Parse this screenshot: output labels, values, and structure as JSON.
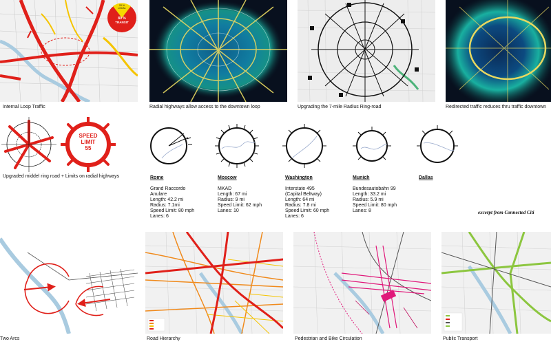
{
  "captions": {
    "internal_loop": "Internal Loop Traffic",
    "radial_highways": "Radial highways allow access to the downtown loop",
    "upgrading_ring": "Upgrading  the 7-mile Radius Ring-road",
    "redirected": "Redirected traffic reduces thru traffic downtown",
    "middle_ring": "Upgraded middel ring road + Limits on radial highways",
    "two_arcs": "Two Arcs",
    "road_hierarchy": "Road Hierarchy",
    "ped_bike": "Pedestrian and Bike Circulation",
    "public_transport": "Public Transport"
  },
  "pie": {
    "top_label": "20 %\nLOCAL",
    "bottom_line1": "80 %",
    "bottom_line2": "TRANSIT",
    "top_color": "#f5d800",
    "bottom_color": "#e0201a"
  },
  "speed_sign": {
    "line1": "SPEED",
    "line2": "LIMIT",
    "line3": "55"
  },
  "cities": [
    {
      "name": "Rome",
      "lines": [
        "Grand Raccordo",
        "Anulare",
        "Length: 42.2 mi",
        "Radius: 7.1mi",
        "Speed Limit: 80 mph",
        "Lanes: 6"
      ]
    },
    {
      "name": "Moscow",
      "lines": [
        "MKAD",
        "Length: 67 mi",
        "Radius: 9 mi",
        "Speed Limit: 62 mph",
        "Lanes: 10"
      ]
    },
    {
      "name": "Washington",
      "lines": [
        "Interstate 495",
        "(Capital Beltway)",
        "Length: 64 mi",
        "Radius: 7.8 mi",
        "Speed Limit: 60 mph",
        "Lanes: 6"
      ]
    },
    {
      "name": "Munich",
      "lines": [
        "Bundesautobahn 99",
        "Length: 33.2 mi",
        "Radius: 5.9 mi",
        "Speed Limit: 80 mph",
        "Lanes: 8"
      ]
    },
    {
      "name": "Dallas",
      "lines": []
    }
  ],
  "excerpt": "excerpt from Connected Citi",
  "colors": {
    "red": "#e0201a",
    "yellow": "#f5c400",
    "orange": "#f08a1c",
    "magenta": "#e0187a",
    "green": "#8cc63f",
    "heat_dark": "#08101e",
    "heat_teal": "#19b0a0"
  }
}
